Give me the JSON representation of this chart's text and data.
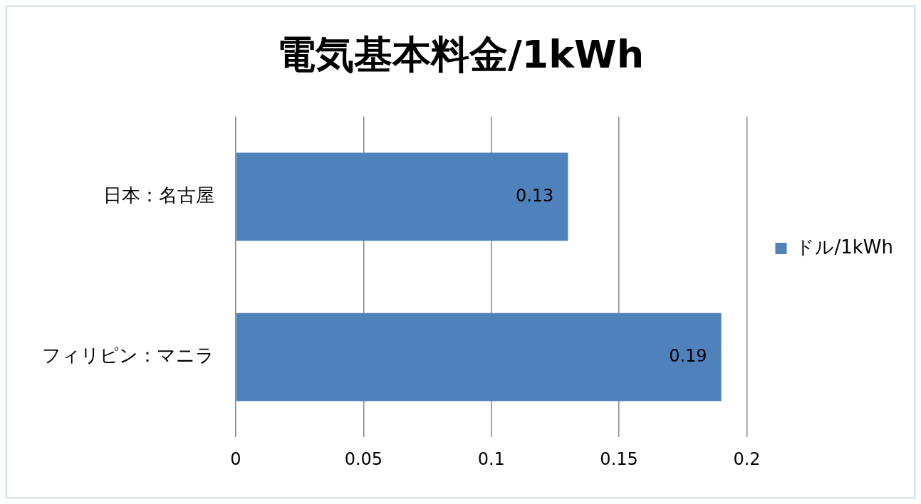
{
  "chart_data": {
    "type": "bar",
    "orientation": "horizontal",
    "title": "電気基本料金/1kWh",
    "categories": [
      "日本：名古屋",
      "フィリピン：マニラ"
    ],
    "series": [
      {
        "name": "ドル/1kWh",
        "color": "#4f81bd",
        "values": [
          0.13,
          0.19
        ]
      }
    ],
    "xlim": [
      0,
      0.2
    ],
    "xticks": [
      0,
      0.05,
      0.1,
      0.15,
      0.2
    ],
    "grid": "x",
    "legend": "right",
    "data_labels": true
  }
}
